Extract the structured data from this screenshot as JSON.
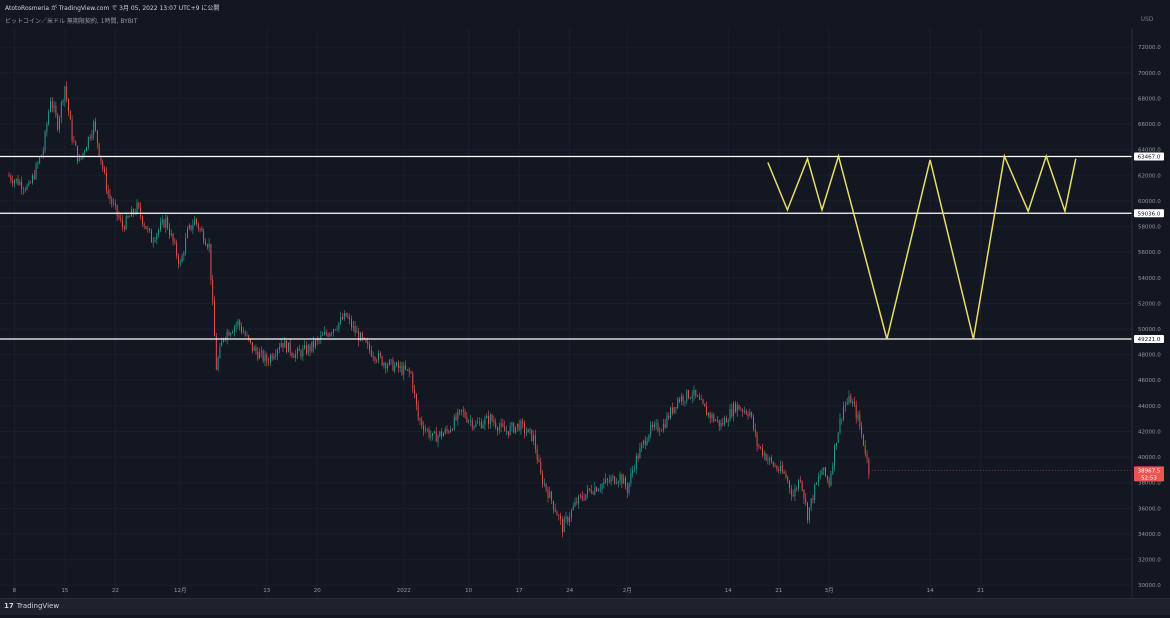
{
  "header": {
    "author_line": "AtotoRosmeria が TradingView.com で 3月 05, 2022 13:07 UTC+9 に公開",
    "symbol_line": "ビットコイン／米ドル 無期限契約, 1時間, BYBIT"
  },
  "footer": {
    "logo_text": "TradingView",
    "logo_mark": "17"
  },
  "colors": {
    "background": "#131722",
    "candle_up": "#26a69a",
    "candle_down": "#ef5350",
    "level_line": "#ffffff",
    "pattern_line": "#e8dc6a",
    "price_tag": "#ef5350",
    "price_line": "#ef5350"
  },
  "chart_data": {
    "type": "candlestick",
    "price_axis_unit": "USD",
    "y_ticks": [
      30000,
      32000,
      34000,
      36000,
      38000,
      40000,
      42000,
      44000,
      46000,
      48000,
      50000,
      52000,
      54000,
      56000,
      58000,
      60000,
      62000,
      64000,
      66000,
      68000,
      70000,
      72000
    ],
    "ylim": [
      29000,
      73500
    ],
    "x_tick_labels": [
      "8",
      "15",
      "22",
      "12月",
      "13",
      "20",
      "2022",
      "10",
      "17",
      "24",
      "2月",
      "14",
      "21",
      "3月",
      "14",
      "21"
    ],
    "x_ticks_days": [
      0,
      7,
      14,
      23,
      35,
      42,
      54,
      63,
      70,
      77,
      85,
      99,
      106,
      113,
      127,
      134
    ],
    "last_day": 118.5,
    "xlim_days": [
      -2,
      155
    ],
    "horizontal_levels": [
      {
        "price": 63467.0,
        "label": "63467.0"
      },
      {
        "price": 59036.0,
        "label": "59036.0"
      },
      {
        "price": 49221.0,
        "label": "49221.0"
      }
    ],
    "current_price": {
      "value": 38967.5,
      "label": "38967.5",
      "countdown": "52:53"
    },
    "price_keypoints": [
      [
        -1,
        62000
      ],
      [
        2,
        61000
      ],
      [
        4,
        64000
      ],
      [
        5,
        68000
      ],
      [
        6,
        66000
      ],
      [
        7,
        69000
      ],
      [
        8,
        65000
      ],
      [
        9,
        63000
      ],
      [
        11,
        66000
      ],
      [
        13,
        60500
      ],
      [
        15,
        58000
      ],
      [
        17,
        59500
      ],
      [
        19,
        57000
      ],
      [
        21,
        58500
      ],
      [
        23,
        55000
      ],
      [
        24,
        57500
      ],
      [
        25,
        58500
      ],
      [
        26,
        57500
      ],
      [
        27,
        56500
      ],
      [
        28,
        47000
      ],
      [
        29,
        49500
      ],
      [
        31,
        50500
      ],
      [
        33,
        48500
      ],
      [
        35,
        47500
      ],
      [
        37,
        49000
      ],
      [
        39,
        48000
      ],
      [
        41,
        48500
      ],
      [
        43,
        49500
      ],
      [
        45,
        50500
      ],
      [
        46,
        51000
      ],
      [
        47,
        50000
      ],
      [
        49,
        48500
      ],
      [
        51,
        47500
      ],
      [
        53,
        47000
      ],
      [
        55,
        46500
      ],
      [
        56,
        43000
      ],
      [
        58,
        41500
      ],
      [
        60,
        42000
      ],
      [
        62,
        43500
      ],
      [
        64,
        42500
      ],
      [
        66,
        43000
      ],
      [
        68,
        42000
      ],
      [
        70,
        42500
      ],
      [
        72,
        41500
      ],
      [
        73,
        38500
      ],
      [
        75,
        36000
      ],
      [
        76,
        34500
      ],
      [
        77,
        35500
      ],
      [
        78,
        36500
      ],
      [
        80,
        37500
      ],
      [
        82,
        38000
      ],
      [
        84,
        38500
      ],
      [
        85,
        37500
      ],
      [
        86,
        39500
      ],
      [
        88,
        42000
      ],
      [
        90,
        42500
      ],
      [
        92,
        44500
      ],
      [
        94,
        45000
      ],
      [
        96,
        43500
      ],
      [
        98,
        42500
      ],
      [
        100,
        44000
      ],
      [
        102,
        43500
      ],
      [
        103,
        41000
      ],
      [
        105,
        39500
      ],
      [
        107,
        38500
      ],
      [
        108,
        37000
      ],
      [
        109,
        38500
      ],
      [
        110,
        35500
      ],
      [
        111,
        37500
      ],
      [
        112,
        39000
      ],
      [
        113,
        38000
      ],
      [
        114,
        41500
      ],
      [
        115,
        44000
      ],
      [
        116,
        44500
      ],
      [
        117,
        43000
      ],
      [
        118,
        40500
      ],
      [
        118.5,
        38967.5
      ]
    ],
    "pattern_points": [
      [
        104.5,
        63000
      ],
      [
        107.2,
        59300
      ],
      [
        110.0,
        63300
      ],
      [
        112.0,
        59300
      ],
      [
        114.3,
        63500
      ],
      [
        121.0,
        49221
      ],
      [
        127.0,
        63200
      ],
      [
        133.0,
        49221
      ],
      [
        137.3,
        63500
      ],
      [
        140.6,
        59200
      ],
      [
        143.1,
        63500
      ],
      [
        145.7,
        59200
      ],
      [
        147.2,
        63300
      ]
    ]
  }
}
